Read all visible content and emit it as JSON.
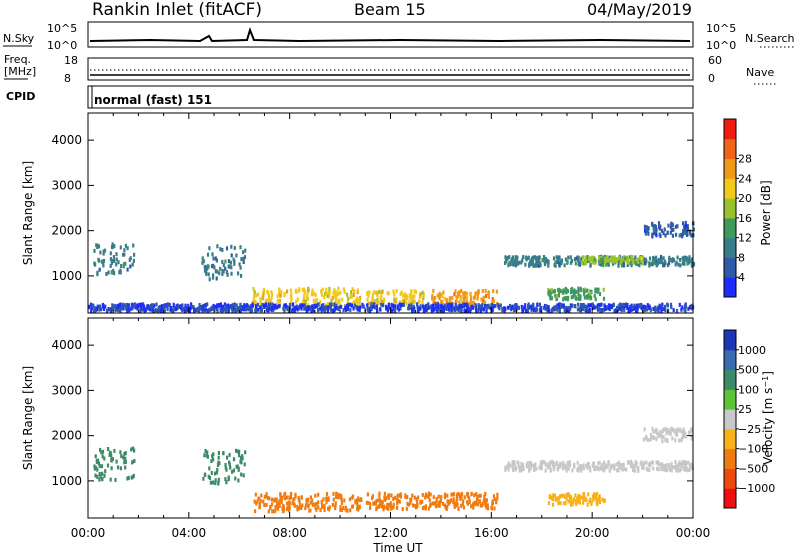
{
  "header": {
    "site": "Rankin Inlet (fitACF)",
    "beam": "Beam 15",
    "date": "04/May/2019"
  },
  "panels": {
    "nsky_label": "N.Sky",
    "nsky_ticks": [
      "10^5",
      "10^0"
    ],
    "nsearch_label": "N.Search",
    "nsearch_ticks": [
      "10^5",
      "10^0"
    ],
    "freq_label": "Freq.",
    "freq_unit": "[MHz]",
    "freq_ticks": [
      "18",
      "8"
    ],
    "nave_label": "Nave",
    "nave_ticks": [
      "60",
      "0"
    ],
    "cpid_label": "CPID",
    "cpid_value": "normal (fast) 151"
  },
  "x_axis": {
    "label": "Time UT",
    "ticks": [
      "00:00",
      "04:00",
      "08:00",
      "12:00",
      "16:00",
      "20:00",
      "00:00"
    ]
  },
  "colors": {
    "power_scale": [
      "#1f2bff",
      "#2e5aa8",
      "#3a7d8a",
      "#3f9a5c",
      "#9ac22e",
      "#f2c81a",
      "#f09a1a",
      "#f0641a",
      "#ee1c10"
    ],
    "velocity_scale": [
      "#1f35b8",
      "#3a6ab0",
      "#3c8a6a",
      "#5cc23a",
      "#c8c8c8",
      "#f7b21a",
      "#f07b10",
      "#ee4a10",
      "#ee1010"
    ]
  },
  "chart_data": [
    {
      "type": "heatmap",
      "title": "Power",
      "ylabel": "Slant Range [km]",
      "xlabel": "",
      "ylim": [
        180,
        4600
      ],
      "xlim": [
        "00:00",
        "24:00"
      ],
      "y_ticks": [
        1000,
        2000,
        3000,
        4000
      ],
      "colorbar": {
        "label": "Power [dB]",
        "ticks": [
          4,
          8,
          12,
          16,
          20,
          24,
          28
        ],
        "range": [
          0,
          32
        ]
      },
      "regions": [
        {
          "t": [
            0.2,
            1.8
          ],
          "r": [
            1000,
            1700
          ],
          "v": 12
        },
        {
          "t": [
            4.5,
            6.2
          ],
          "r": [
            900,
            1650
          ],
          "v": 12
        },
        {
          "t": [
            6.5,
            10.8
          ],
          "r": [
            300,
            700
          ],
          "v": 24
        },
        {
          "t": [
            11.0,
            13.3
          ],
          "r": [
            350,
            650
          ],
          "v": 24
        },
        {
          "t": [
            13.6,
            16.2
          ],
          "r": [
            350,
            650
          ],
          "v": 28
        },
        {
          "t": [
            16.5,
            24.0
          ],
          "r": [
            1200,
            1400
          ],
          "v": 12
        },
        {
          "t": [
            18.2,
            20.5
          ],
          "r": [
            450,
            700
          ],
          "v": 16
        },
        {
          "t": [
            19.5,
            22.0
          ],
          "r": [
            1250,
            1400
          ],
          "v": 20
        },
        {
          "t": [
            22.0,
            24.0
          ],
          "r": [
            1850,
            2150
          ],
          "v": 8
        },
        {
          "t": [
            0.0,
            24.0
          ],
          "r": [
            200,
            350
          ],
          "v": 6
        }
      ]
    },
    {
      "type": "heatmap",
      "title": "Velocity",
      "ylabel": "Slant Range [km]",
      "xlabel": "Time UT",
      "ylim": [
        180,
        4600
      ],
      "xlim": [
        "00:00",
        "24:00"
      ],
      "y_ticks": [
        1000,
        2000,
        3000,
        4000
      ],
      "colorbar": {
        "label": "Velocity [m s^-1]",
        "ticks": [
          1000,
          500,
          100,
          25,
          -25,
          -100,
          -500,
          -1000
        ]
      },
      "regions": [
        {
          "t": [
            0.2,
            1.8
          ],
          "r": [
            1000,
            1700
          ],
          "v": 200
        },
        {
          "t": [
            4.5,
            6.2
          ],
          "r": [
            900,
            1650
          ],
          "v": 100
        },
        {
          "t": [
            6.5,
            10.8
          ],
          "r": [
            300,
            700
          ],
          "v": -150
        },
        {
          "t": [
            11.0,
            16.2
          ],
          "r": [
            350,
            700
          ],
          "v": -150
        },
        {
          "t": [
            16.5,
            24.0
          ],
          "r": [
            1200,
            1400
          ],
          "v": 0
        },
        {
          "t": [
            18.2,
            20.5
          ],
          "r": [
            450,
            700
          ],
          "v": -60
        },
        {
          "t": [
            22.0,
            24.0
          ],
          "r": [
            1850,
            2150
          ],
          "v": 0
        }
      ]
    }
  ]
}
